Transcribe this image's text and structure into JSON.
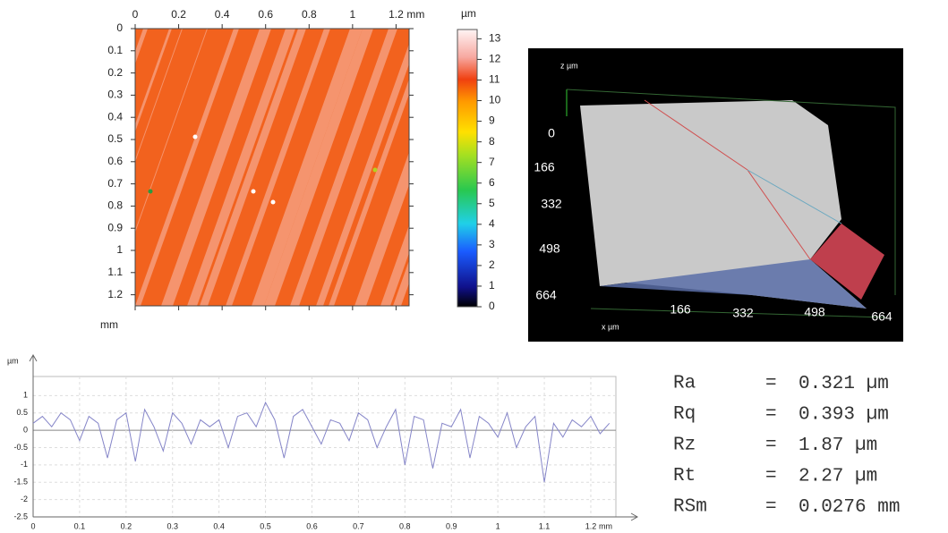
{
  "chart_data": [
    {
      "type": "heatmap",
      "xlim": [
        0,
        1.26
      ],
      "xticks": [
        0,
        0.2,
        0.4,
        0.6,
        0.8,
        1,
        1.2
      ],
      "x_unit": "mm",
      "ylim": [
        0,
        1.25
      ],
      "yticks": [
        0,
        0.1,
        0.2,
        0.3,
        0.4,
        0.5,
        0.6,
        0.7,
        0.8,
        0.9,
        1,
        1.1,
        1.2
      ],
      "y_unit": "mm",
      "colorbar": {
        "label": "µm",
        "lim": [
          0,
          13.45
        ],
        "ticks": [
          0,
          1,
          2,
          3,
          4,
          5,
          6,
          7,
          8,
          9,
          10,
          11,
          12,
          13
        ]
      }
    },
    {
      "type": "surface3d",
      "z_label": "z  µm",
      "x_label": "x  µm",
      "zticks": [
        0,
        166,
        332,
        498,
        664
      ],
      "xticks": [
        166,
        332,
        498,
        664
      ]
    },
    {
      "type": "line",
      "y_label": "µm",
      "x_unit": "mm",
      "color": "#8585c8",
      "xlim": [
        0,
        1.254
      ],
      "xticks": [
        0,
        0.1,
        0.2,
        0.3,
        0.4,
        0.5,
        0.6,
        0.7,
        0.8,
        0.9,
        1,
        1.1,
        1.2
      ],
      "ylim": [
        -2.5,
        1.55
      ],
      "yticks": [
        -2.5,
        -2,
        -1.5,
        -1,
        -0.5,
        0,
        0.5,
        1
      ],
      "grid": true,
      "x": [
        0,
        0.02,
        0.04,
        0.06,
        0.08,
        0.1,
        0.12,
        0.14,
        0.16,
        0.18,
        0.2,
        0.22,
        0.24,
        0.26,
        0.28,
        0.3,
        0.32,
        0.34,
        0.36,
        0.38,
        0.4,
        0.42,
        0.44,
        0.46,
        0.48,
        0.5,
        0.52,
        0.54,
        0.56,
        0.58,
        0.6,
        0.62,
        0.64,
        0.66,
        0.68,
        0.7,
        0.72,
        0.74,
        0.76,
        0.78,
        0.8,
        0.82,
        0.84,
        0.86,
        0.88,
        0.9,
        0.92,
        0.94,
        0.96,
        0.98,
        1,
        1.02,
        1.04,
        1.06,
        1.08,
        1.1,
        1.12,
        1.14,
        1.16,
        1.18,
        1.2,
        1.22,
        1.24
      ],
      "values": [
        0.2,
        0.4,
        0.1,
        0.5,
        0.3,
        -0.3,
        0.4,
        0.2,
        -0.8,
        0.3,
        0.5,
        -0.9,
        0.6,
        0.1,
        -0.6,
        0.5,
        0.2,
        -0.4,
        0.3,
        0.1,
        0.3,
        -0.5,
        0.4,
        0.5,
        0.1,
        0.8,
        0.3,
        -0.8,
        0.4,
        0.6,
        0.1,
        -0.4,
        0.3,
        0.2,
        -0.3,
        0.5,
        0.3,
        -0.5,
        0.1,
        0.6,
        -1.0,
        0.4,
        0.3,
        -1.1,
        0.2,
        0.1,
        0.6,
        -0.8,
        0.4,
        0.2,
        -0.2,
        0.5,
        -0.5,
        0.1,
        0.4,
        -1.5,
        0.2,
        -0.2,
        0.3,
        0.1,
        0.4,
        -0.1,
        0.2
      ]
    }
  ],
  "parameters": [
    [
      "Ra",
      "=",
      0.321,
      "µm"
    ],
    [
      "Rq",
      "=",
      0.393,
      "µm"
    ],
    [
      "Rz",
      "=",
      1.87,
      "µm"
    ],
    [
      "Rt",
      "=",
      2.27,
      "µm"
    ],
    [
      "RSm",
      "=",
      0.0276,
      "mm"
    ]
  ]
}
